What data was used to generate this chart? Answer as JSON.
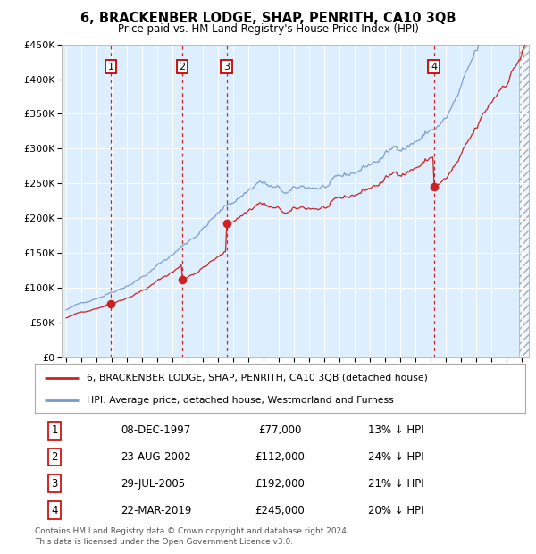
{
  "title": "6, BRACKENBER LODGE, SHAP, PENRITH, CA10 3QB",
  "subtitle": "Price paid vs. HM Land Registry's House Price Index (HPI)",
  "sale_dates_num": [
    1997.93,
    2002.64,
    2005.57,
    2019.22
  ],
  "sale_prices": [
    77000,
    112000,
    192000,
    245000
  ],
  "sale_labels": [
    "1",
    "2",
    "3",
    "4"
  ],
  "sale_hpi_pct": [
    "13% ↓ HPI",
    "24% ↓ HPI",
    "21% ↓ HPI",
    "20% ↓ HPI"
  ],
  "sale_date_strs": [
    "08-DEC-1997",
    "23-AUG-2002",
    "29-JUL-2005",
    "22-MAR-2019"
  ],
  "sale_price_strs": [
    "£77,000",
    "£112,000",
    "£192,000",
    "£245,000"
  ],
  "vline_colors": [
    "#cc0000",
    "#cc0000",
    "#cc0000",
    "#cc0000"
  ],
  "hpi_line_color": "#7799cc",
  "price_line_color": "#cc2222",
  "dot_color": "#cc2222",
  "plot_bg_color": "#ddeeff",
  "ylim": [
    0,
    450000
  ],
  "xlim_start": 1994.7,
  "xlim_end": 2025.5,
  "legend_house": "6, BRACKENBER LODGE, SHAP, PENRITH, CA10 3QB (detached house)",
  "legend_hpi": "HPI: Average price, detached house, Westmorland and Furness",
  "footer": "Contains HM Land Registry data © Crown copyright and database right 2024.\nThis data is licensed under the Open Government Licence v3.0."
}
